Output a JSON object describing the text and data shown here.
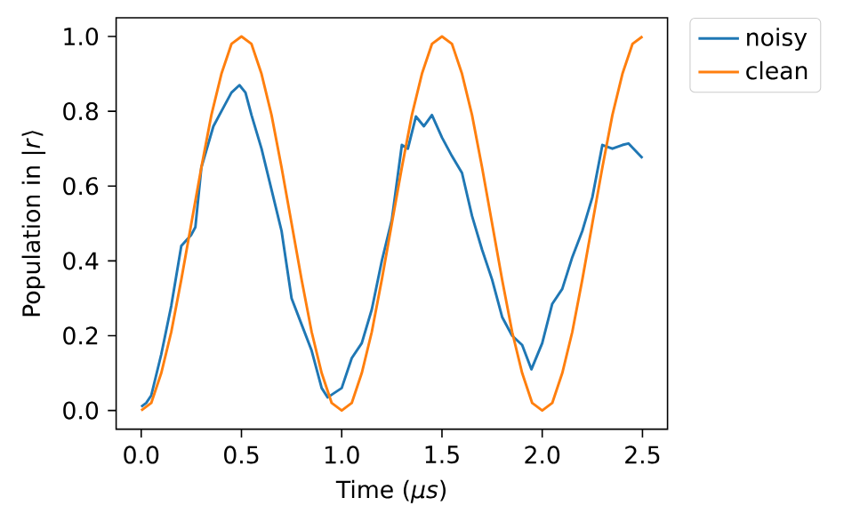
{
  "chart_data": {
    "type": "line",
    "xlabel": "Time (*μs*)",
    "ylabel": "Population in |*r*⟩",
    "xlim": [
      -0.125,
      2.625
    ],
    "ylim": [
      -0.05,
      1.05
    ],
    "xticks": [
      {
        "value": 0,
        "label": "0.0"
      },
      {
        "value": 0.5,
        "label": "0.5"
      },
      {
        "value": 1,
        "label": "1.0"
      },
      {
        "value": 1.5,
        "label": "1.5"
      },
      {
        "value": 2,
        "label": "2.0"
      },
      {
        "value": 2.5,
        "label": "2.5"
      }
    ],
    "yticks": [
      {
        "value": 0,
        "label": "0.0"
      },
      {
        "value": 0.2,
        "label": "0.2"
      },
      {
        "value": 0.4,
        "label": "0.4"
      },
      {
        "value": 0.6,
        "label": "0.6"
      },
      {
        "value": 0.8,
        "label": "0.8"
      },
      {
        "value": 1,
        "label": "1.0"
      }
    ],
    "legend": "top right",
    "grid": false,
    "marker": "none",
    "line_style": "solid",
    "series": [
      {
        "name": "noisy",
        "color": "#1f77b4",
        "x": [
          0,
          0.025,
          0.05,
          0.1,
          0.15,
          0.2,
          0.25,
          0.27,
          0.3,
          0.36,
          0.4,
          0.45,
          0.49,
          0.52,
          0.55,
          0.6,
          0.65,
          0.7,
          0.75,
          0.8,
          0.85,
          0.9,
          0.93,
          1.0,
          1.05,
          1.1,
          1.15,
          1.2,
          1.25,
          1.3,
          1.33,
          1.37,
          1.41,
          1.45,
          1.5,
          1.55,
          1.6,
          1.65,
          1.7,
          1.75,
          1.8,
          1.85,
          1.9,
          1.946,
          2.0,
          2.05,
          2.1,
          2.15,
          2.2,
          2.25,
          2.3,
          2.35,
          2.4,
          2.43,
          2.5
        ],
        "values": [
          0.01,
          0.02,
          0.04,
          0.15,
          0.28,
          0.44,
          0.47,
          0.49,
          0.65,
          0.76,
          0.8,
          0.85,
          0.87,
          0.85,
          0.79,
          0.7,
          0.59,
          0.48,
          0.3,
          0.23,
          0.16,
          0.06,
          0.035,
          0.06,
          0.14,
          0.18,
          0.27,
          0.4,
          0.51,
          0.71,
          0.7,
          0.786,
          0.76,
          0.79,
          0.73,
          0.68,
          0.635,
          0.52,
          0.43,
          0.35,
          0.25,
          0.2,
          0.175,
          0.11,
          0.18,
          0.285,
          0.325,
          0.41,
          0.48,
          0.57,
          0.71,
          0.7,
          0.71,
          0.714,
          0.675
        ]
      },
      {
        "name": "clean",
        "color": "#ff7f0e",
        "x": [
          0,
          0.05,
          0.1,
          0.15,
          0.2,
          0.25,
          0.3,
          0.35,
          0.4,
          0.45,
          0.5,
          0.55,
          0.6,
          0.65,
          0.7,
          0.75,
          0.8,
          0.85,
          0.9,
          0.95,
          1.0,
          1.05,
          1.1,
          1.15,
          1.2,
          1.25,
          1.3,
          1.35,
          1.4,
          1.45,
          1.5,
          1.55,
          1.6,
          1.65,
          1.7,
          1.75,
          1.8,
          1.85,
          1.9,
          1.95,
          2.0,
          2.05,
          2.1,
          2.15,
          2.2,
          2.25,
          2.3,
          2.35,
          2.4,
          2.45,
          2.5
        ],
        "values": [
          0,
          0.02,
          0.1,
          0.21,
          0.35,
          0.5,
          0.65,
          0.79,
          0.9,
          0.98,
          1.0,
          0.98,
          0.9,
          0.79,
          0.65,
          0.5,
          0.35,
          0.21,
          0.1,
          0.02,
          0,
          0.02,
          0.1,
          0.21,
          0.35,
          0.5,
          0.65,
          0.79,
          0.9,
          0.98,
          1.0,
          0.98,
          0.9,
          0.79,
          0.65,
          0.5,
          0.35,
          0.21,
          0.1,
          0.02,
          0,
          0.02,
          0.1,
          0.21,
          0.35,
          0.5,
          0.65,
          0.79,
          0.9,
          0.98,
          1.0
        ]
      }
    ]
  }
}
